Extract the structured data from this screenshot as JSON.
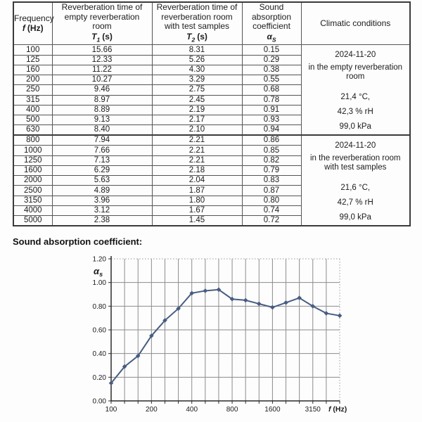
{
  "section_heading": "Sound absorption coefficient:",
  "table": {
    "col_headers": {
      "freq_line1": "Frequency",
      "freq_sym": "f",
      "freq_unit": "(Hz)",
      "t1_line1": "Reverberation time of",
      "t1_line2": "empty reverberation",
      "t1_line3": "room",
      "t1_sym": "T",
      "t1_sub": "1",
      "t1_unit": "(s)",
      "t2_line1": "Reverberation time of",
      "t2_line2": "reverberation room",
      "t2_line3": "with test samples",
      "t2_sym": "T",
      "t2_sub": "2",
      "t2_unit": "(s)",
      "alpha_line1": "Sound",
      "alpha_line2": "absorption",
      "alpha_line3": "coefficient",
      "alpha_sym": "α",
      "alpha_sub": "S",
      "climatic": "Climatic conditions"
    },
    "rows": [
      {
        "f": "100",
        "t1": "15.66",
        "t2": "8.31",
        "a": "0.15"
      },
      {
        "f": "125",
        "t1": "12.33",
        "t2": "5.26",
        "a": "0.29"
      },
      {
        "f": "160",
        "t1": "11.22",
        "t2": "4.30",
        "a": "0.38"
      },
      {
        "f": "200",
        "t1": "10.27",
        "t2": "3.29",
        "a": "0.55"
      },
      {
        "f": "250",
        "t1": "9.46",
        "t2": "2.75",
        "a": "0.68"
      },
      {
        "f": "315",
        "t1": "8.97",
        "t2": "2.45",
        "a": "0.78"
      },
      {
        "f": "400",
        "t1": "8.89",
        "t2": "2.19",
        "a": "0.91"
      },
      {
        "f": "500",
        "t1": "9.13",
        "t2": "2.17",
        "a": "0.93"
      },
      {
        "f": "630",
        "t1": "8.40",
        "t2": "2.10",
        "a": "0.94"
      },
      {
        "f": "800",
        "t1": "7.94",
        "t2": "2.21",
        "a": "0.86"
      },
      {
        "f": "1000",
        "t1": "7.66",
        "t2": "2.21",
        "a": "0.85"
      },
      {
        "f": "1250",
        "t1": "7.13",
        "t2": "2.21",
        "a": "0.82"
      },
      {
        "f": "1600",
        "t1": "6.29",
        "t2": "2.18",
        "a": "0.79"
      },
      {
        "f": "2000",
        "t1": "5.63",
        "t2": "2.04",
        "a": "0.83"
      },
      {
        "f": "2500",
        "t1": "4.89",
        "t2": "1.87",
        "a": "0.87"
      },
      {
        "f": "3150",
        "t1": "3.96",
        "t2": "1.80",
        "a": "0.80"
      },
      {
        "f": "4000",
        "t1": "3.12",
        "t2": "1.67",
        "a": "0.74"
      },
      {
        "f": "5000",
        "t1": "2.38",
        "t2": "1.45",
        "a": "0.72"
      }
    ],
    "groups": [
      {
        "date": "2024-11-20",
        "location_lines": [
          "in the empty reverberation",
          "room"
        ],
        "temperature": "21,4 °C,",
        "humidity": "42,3 % rH",
        "pressure": "99,0 kPa"
      },
      {
        "date": "2024-11-20",
        "location_lines": [
          "in the reverberation room",
          "with test samples"
        ],
        "temperature": "21,6 °C,",
        "humidity": "42,7 % rH",
        "pressure": "99,0 kPa"
      }
    ]
  },
  "chart_data": {
    "type": "line",
    "title": "Sound absorption coefficient:",
    "ylabel_sym": "α",
    "ylabel_sub": "s",
    "xlabel_sym": "f",
    "xlabel_unit": " (Hz)",
    "x": [
      100,
      125,
      160,
      200,
      250,
      315,
      400,
      500,
      630,
      800,
      1000,
      1250,
      1600,
      2000,
      2500,
      3150,
      4000,
      5000
    ],
    "values": [
      0.15,
      0.29,
      0.38,
      0.55,
      0.68,
      0.78,
      0.91,
      0.93,
      0.94,
      0.86,
      0.85,
      0.82,
      0.79,
      0.83,
      0.87,
      0.8,
      0.74,
      0.72
    ],
    "x_scale": "log-third-octave-bands",
    "ylim": [
      0,
      1.2
    ],
    "ytick_labels": [
      "0.00",
      "0.20",
      "0.40",
      "0.60",
      "0.80",
      "1.00",
      "1.20"
    ],
    "x_tick_labels": [
      "100",
      "200",
      "400",
      "800",
      "1600",
      "3150"
    ],
    "x_tick_bands": [
      0,
      3,
      6,
      9,
      12,
      15
    ],
    "grid": true,
    "legend": "none",
    "marker": "diamond",
    "colors": {
      "line": "#475d82",
      "grid": "#8c8c8c",
      "axis": "#2b2b2b",
      "dotted": "#9a9a9a",
      "text": "#1c1c1c"
    }
  }
}
